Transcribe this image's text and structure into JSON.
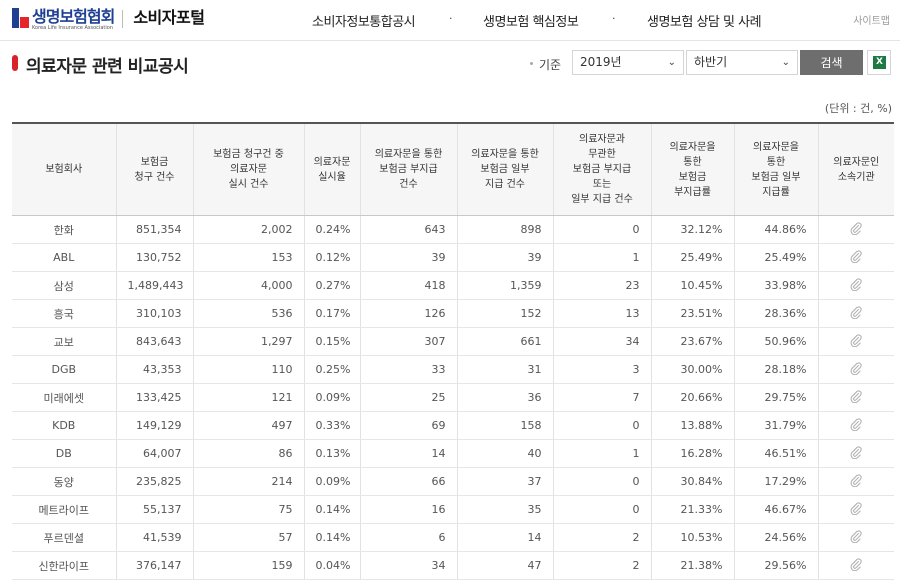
{
  "header": {
    "logo_kr": "생명보험협회",
    "logo_en": "Korea Life Insurance Association",
    "portal": "소비자포털",
    "nav": [
      "소비자정보통합공시",
      "생명보험 핵심정보",
      "생명보험 상담 및 사례"
    ],
    "nav_separator": "·",
    "sitemap": "사이트맵",
    "brand_colors": {
      "blue": "#1f3f93",
      "red": "#e5252a"
    }
  },
  "page": {
    "title": "의료자문 관련 비교공시",
    "filter_label": "기준",
    "year_value": "2019년",
    "half_value": "하반기",
    "search_label": "검색",
    "excel_icon_text": "X",
    "unit": "(단위 : 건, %)",
    "accent_color": "#d9232a"
  },
  "table": {
    "headers": [
      "보험회사",
      "보험금\n청구 건수",
      "보험금 청구건 중\n의료자문\n실시 건수",
      "의료자문\n실시율",
      "의료자문을 통한\n보험금 부지급\n건수",
      "의료자문을 통한\n보험금 일부\n지급 건수",
      "의료자문과\n무관한\n보험금 부지급\n또는\n일부 지급 건수",
      "의료자문을\n통한\n보험금\n부지급률",
      "의료자문을\n통한\n보험금 일부\n지급률",
      "의료자문인\n소속기관"
    ],
    "rows": [
      [
        "한화",
        "851,354",
        "2,002",
        "0.24%",
        "643",
        "898",
        "0",
        "32.12%",
        "44.86%"
      ],
      [
        "ABL",
        "130,752",
        "153",
        "0.12%",
        "39",
        "39",
        "1",
        "25.49%",
        "25.49%"
      ],
      [
        "삼성",
        "1,489,443",
        "4,000",
        "0.27%",
        "418",
        "1,359",
        "23",
        "10.45%",
        "33.98%"
      ],
      [
        "흥국",
        "310,103",
        "536",
        "0.17%",
        "126",
        "152",
        "13",
        "23.51%",
        "28.36%"
      ],
      [
        "교보",
        "843,643",
        "1,297",
        "0.15%",
        "307",
        "661",
        "34",
        "23.67%",
        "50.96%"
      ],
      [
        "DGB",
        "43,353",
        "110",
        "0.25%",
        "33",
        "31",
        "3",
        "30.00%",
        "28.18%"
      ],
      [
        "미래에셋",
        "133,425",
        "121",
        "0.09%",
        "25",
        "36",
        "7",
        "20.66%",
        "29.75%"
      ],
      [
        "KDB",
        "149,129",
        "497",
        "0.33%",
        "69",
        "158",
        "0",
        "13.88%",
        "31.79%"
      ],
      [
        "DB",
        "64,007",
        "86",
        "0.13%",
        "14",
        "40",
        "1",
        "16.28%",
        "46.51%"
      ],
      [
        "동양",
        "235,825",
        "214",
        "0.09%",
        "66",
        "37",
        "0",
        "30.84%",
        "17.29%"
      ],
      [
        "메트라이프",
        "55,137",
        "75",
        "0.14%",
        "16",
        "35",
        "0",
        "21.33%",
        "46.67%"
      ],
      [
        "푸르덴셜",
        "41,539",
        "57",
        "0.14%",
        "6",
        "14",
        "2",
        "10.53%",
        "24.56%"
      ],
      [
        "신한라이프",
        "376,147",
        "159",
        "0.04%",
        "34",
        "47",
        "2",
        "21.38%",
        "29.56%"
      ]
    ],
    "attachment_icon": "paperclip-icon"
  }
}
